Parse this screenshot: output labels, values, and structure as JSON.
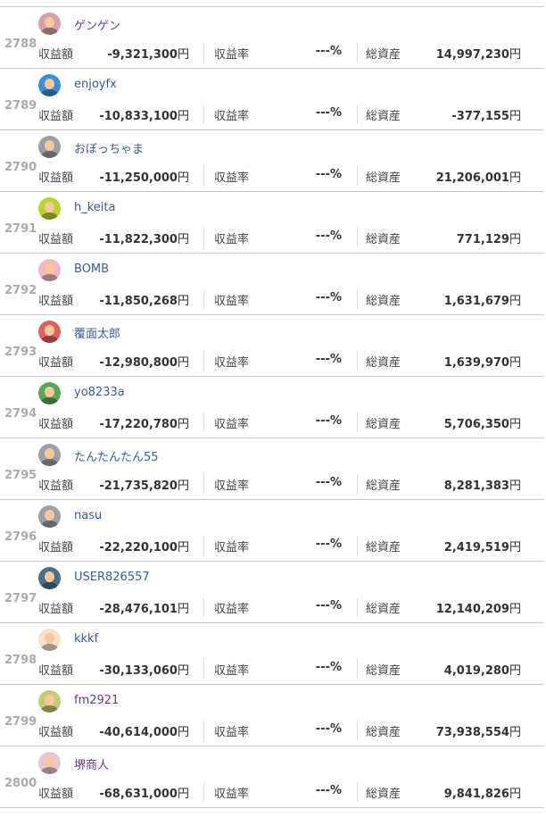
{
  "labels": {
    "profit": "収益額",
    "rate": "収益率",
    "assets": "総資産",
    "yen": "円"
  },
  "rows": [
    {
      "rank": "2788",
      "name": "ゲンゲン",
      "visited": true,
      "avatar_color": "#d9a0a8",
      "profit": "-9,321,300",
      "rate": "---%",
      "assets": "14,997,230"
    },
    {
      "rank": "2789",
      "name": "enjoyfx",
      "visited": false,
      "avatar_color": "#3b8fd9",
      "profit": "-10,833,100",
      "rate": "---%",
      "assets": "-377,155"
    },
    {
      "rank": "2790",
      "name": "おぼっちゃま",
      "visited": false,
      "avatar_color": "#9aa0a8",
      "profit": "-11,250,000",
      "rate": "---%",
      "assets": "21,206,001"
    },
    {
      "rank": "2791",
      "name": "h_keita",
      "visited": false,
      "avatar_color": "#b5d62a",
      "profit": "-11,822,300",
      "rate": "---%",
      "assets": "771,129"
    },
    {
      "rank": "2792",
      "name": "BOMB",
      "visited": false,
      "avatar_color": "#f2b8c4",
      "profit": "-11,850,268",
      "rate": "---%",
      "assets": "1,631,679"
    },
    {
      "rank": "2793",
      "name": "覆面太郎",
      "visited": false,
      "avatar_color": "#e06060",
      "profit": "-12,980,800",
      "rate": "---%",
      "assets": "1,639,970"
    },
    {
      "rank": "2794",
      "name": "yo8233a",
      "visited": false,
      "avatar_color": "#5aa55a",
      "profit": "-17,220,780",
      "rate": "---%",
      "assets": "5,706,350"
    },
    {
      "rank": "2795",
      "name": "たんたんたん55",
      "visited": false,
      "avatar_color": "#9aa0a8",
      "profit": "-21,735,820",
      "rate": "---%",
      "assets": "8,281,383"
    },
    {
      "rank": "2796",
      "name": "nasu",
      "visited": false,
      "avatar_color": "#9aa0a8",
      "profit": "-22,220,100",
      "rate": "---%",
      "assets": "2,419,519"
    },
    {
      "rank": "2797",
      "name": "USER826557",
      "visited": false,
      "avatar_color": "#4a7088",
      "profit": "-28,476,101",
      "rate": "---%",
      "assets": "12,140,209"
    },
    {
      "rank": "2798",
      "name": "kkkf",
      "visited": false,
      "avatar_color": "#f7e0c8",
      "profit": "-30,133,060",
      "rate": "---%",
      "assets": "4,019,280"
    },
    {
      "rank": "2799",
      "name": "fm2921",
      "visited": true,
      "avatar_color": "#c8c878",
      "profit": "-40,614,000",
      "rate": "---%",
      "assets": "73,938,554"
    },
    {
      "rank": "2800",
      "name": "堺商人",
      "visited": true,
      "avatar_color": "#e8c8d0",
      "profit": "-68,631,000",
      "rate": "---%",
      "assets": "9,841,826"
    }
  ]
}
